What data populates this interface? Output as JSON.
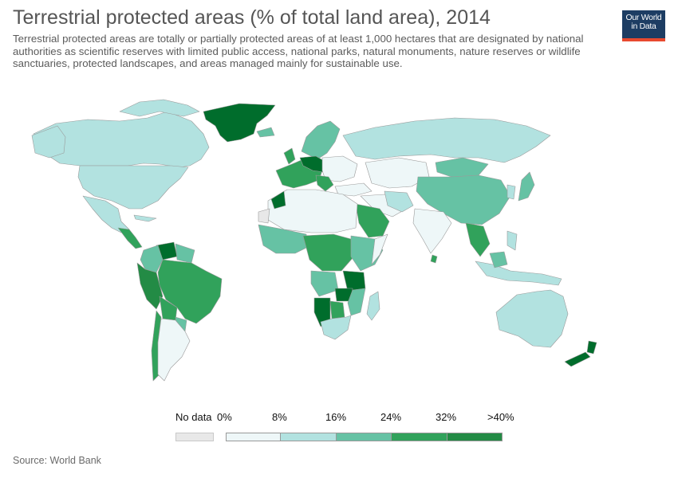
{
  "title": "Terrestrial protected areas (% of total land area), 2014",
  "subtitle": "Terrestrial protected areas are totally or partially protected areas of at least 1,000 hectares that are designated by national authorities as scientific reserves with limited public access, national parks, natural monuments, nature reserves or wildlife sanctuaries, protected landscapes, and areas managed mainly for sustainable use.",
  "logo": {
    "line1": "Our World",
    "line2": "in Data"
  },
  "source": "Source: World Bank",
  "legend": {
    "no_data_label": "No data",
    "no_data_color": "#e8e8e8",
    "tick_labels": [
      "0%",
      "8%",
      "16%",
      "24%",
      "32%",
      ">40%"
    ],
    "bin_colors": [
      "#eef7f8",
      "#b2e2e0",
      "#66c2a4",
      "#31a25b",
      "#238b45",
      "#006d2c"
    ]
  },
  "colors": {
    "land_default": "#b2e2e0",
    "border": "#9a9a9a",
    "text": "#5b5b5b"
  }
}
